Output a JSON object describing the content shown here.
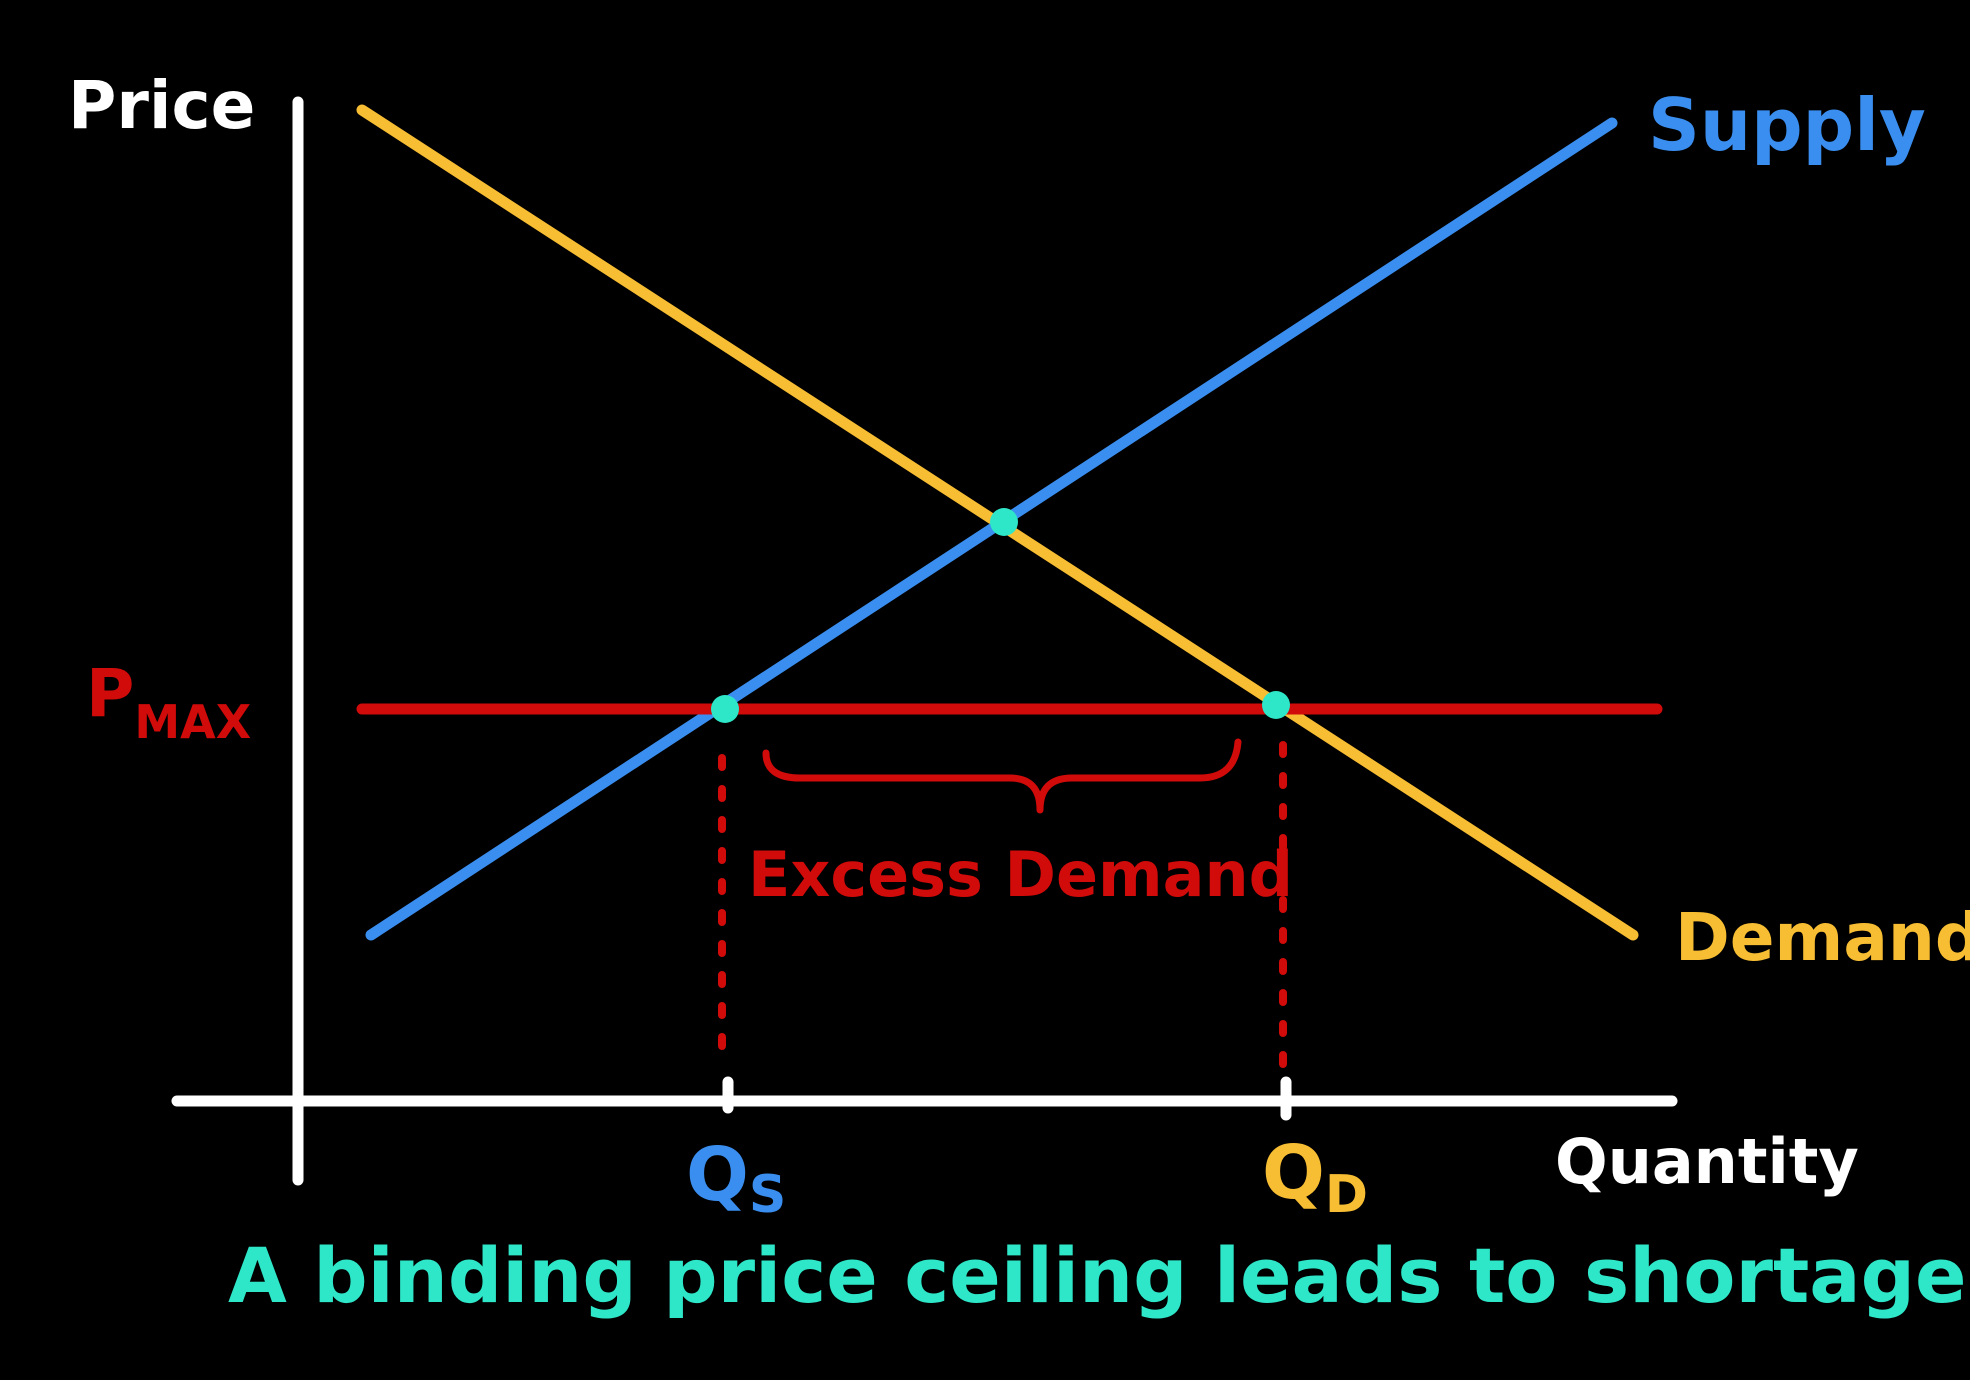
{
  "axes": {
    "y_label": "Price",
    "x_label": "Quantity"
  },
  "curves": {
    "supply_label": "Supply",
    "demand_label": "Demand",
    "ceiling_label_main": "P",
    "ceiling_label_sub": "MAX"
  },
  "markers": {
    "qs_main": "Q",
    "qs_sub": "S",
    "qd_main": "Q",
    "qd_sub": "D"
  },
  "annotation": {
    "gap_label": "Excess Demand"
  },
  "caption": "A binding price ceiling leads to shortages",
  "colors": {
    "background": "#000000",
    "axis": "#ffffff",
    "supply": "#3a8ef0",
    "demand": "#f7bd33",
    "ceiling": "#d10a0a",
    "points": "#2ee6c8",
    "caption": "#2ee6c8"
  }
}
